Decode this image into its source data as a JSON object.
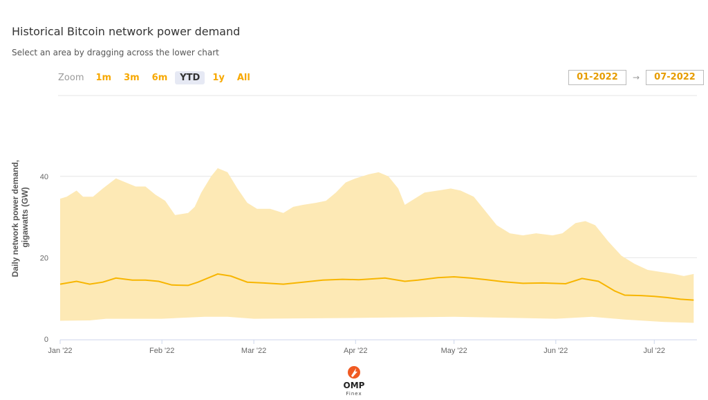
{
  "title": "Historical Bitcoin network power demand",
  "subtitle": "Select an area by dragging across the lower chart",
  "zoom": {
    "label": "Zoom",
    "buttons": [
      "1m",
      "3m",
      "6m",
      "YTD",
      "1y",
      "All"
    ],
    "active": "YTD"
  },
  "range": {
    "from": "01-2022",
    "to": "07-2022",
    "arrow": "→"
  },
  "logo": {
    "text": "OMP",
    "sub": "Finex"
  },
  "colors": {
    "accent": "#f7b500",
    "band": "#fde9b5",
    "grid": "#e6e6e6"
  },
  "chart_data": {
    "type": "area",
    "ylabel_lines": [
      "Daily network power demand,",
      "gigawatts (GW)"
    ],
    "yticks": [
      0,
      20,
      40
    ],
    "ylim": [
      0,
      50
    ],
    "xlim": [
      "2022-01-01",
      "2022-07-14"
    ],
    "xticks": [
      {
        "label": "Jan '22",
        "date": "2022-01-01"
      },
      {
        "label": "Feb '22",
        "date": "2022-02-01"
      },
      {
        "label": "Mar '22",
        "date": "2022-03-01"
      },
      {
        "label": "Apr '22",
        "date": "2022-04-01"
      },
      {
        "label": "May '22",
        "date": "2022-05-01"
      },
      {
        "label": "Jun '22",
        "date": "2022-06-01"
      },
      {
        "label": "Jul '22",
        "date": "2022-07-01"
      }
    ],
    "grid": true,
    "series": [
      {
        "role": "upper bound",
        "points": [
          [
            "2022-01-01",
            34.5
          ],
          [
            "2022-01-03",
            35
          ],
          [
            "2022-01-06",
            36.5
          ],
          [
            "2022-01-08",
            35
          ],
          [
            "2022-01-11",
            35
          ],
          [
            "2022-01-14",
            37
          ],
          [
            "2022-01-18",
            39.5
          ],
          [
            "2022-01-21",
            38.5
          ],
          [
            "2022-01-24",
            37.5
          ],
          [
            "2022-01-27",
            37.5
          ],
          [
            "2022-01-30",
            35.5
          ],
          [
            "2022-02-02",
            34
          ],
          [
            "2022-02-05",
            30.5
          ],
          [
            "2022-02-09",
            31
          ],
          [
            "2022-02-11",
            32.5
          ],
          [
            "2022-02-13",
            36
          ],
          [
            "2022-02-16",
            40
          ],
          [
            "2022-02-18",
            42
          ],
          [
            "2022-02-21",
            41
          ],
          [
            "2022-02-24",
            37
          ],
          [
            "2022-02-27",
            33.5
          ],
          [
            "2022-03-02",
            32
          ],
          [
            "2022-03-06",
            32
          ],
          [
            "2022-03-10",
            31
          ],
          [
            "2022-03-13",
            32.5
          ],
          [
            "2022-03-16",
            33
          ],
          [
            "2022-03-20",
            33.5
          ],
          [
            "2022-03-23",
            34
          ],
          [
            "2022-03-26",
            36
          ],
          [
            "2022-03-29",
            38.5
          ],
          [
            "2022-04-01",
            39.5
          ],
          [
            "2022-04-05",
            40.5
          ],
          [
            "2022-04-08",
            41
          ],
          [
            "2022-04-11",
            40
          ],
          [
            "2022-04-14",
            37
          ],
          [
            "2022-04-16",
            33
          ],
          [
            "2022-04-19",
            34.5
          ],
          [
            "2022-04-22",
            36
          ],
          [
            "2022-04-26",
            36.5
          ],
          [
            "2022-04-30",
            37
          ],
          [
            "2022-05-03",
            36.5
          ],
          [
            "2022-05-07",
            35
          ],
          [
            "2022-05-10",
            32
          ],
          [
            "2022-05-14",
            28
          ],
          [
            "2022-05-18",
            26
          ],
          [
            "2022-05-22",
            25.5
          ],
          [
            "2022-05-26",
            26
          ],
          [
            "2022-05-31",
            25.5
          ],
          [
            "2022-06-03",
            26
          ],
          [
            "2022-06-07",
            28.5
          ],
          [
            "2022-06-10",
            29
          ],
          [
            "2022-06-13",
            28
          ],
          [
            "2022-06-17",
            24
          ],
          [
            "2022-06-21",
            20.5
          ],
          [
            "2022-06-25",
            18.5
          ],
          [
            "2022-06-29",
            17
          ],
          [
            "2022-07-03",
            16.5
          ],
          [
            "2022-07-07",
            16
          ],
          [
            "2022-07-10",
            15.5
          ],
          [
            "2022-07-13",
            16
          ]
        ]
      },
      {
        "role": "estimate",
        "points": [
          [
            "2022-01-01",
            13.5
          ],
          [
            "2022-01-06",
            14.2
          ],
          [
            "2022-01-10",
            13.5
          ],
          [
            "2022-01-14",
            14
          ],
          [
            "2022-01-18",
            15
          ],
          [
            "2022-01-23",
            14.5
          ],
          [
            "2022-01-27",
            14.5
          ],
          [
            "2022-01-31",
            14.2
          ],
          [
            "2022-02-04",
            13.3
          ],
          [
            "2022-02-09",
            13.2
          ],
          [
            "2022-02-12",
            14
          ],
          [
            "2022-02-18",
            16
          ],
          [
            "2022-02-22",
            15.5
          ],
          [
            "2022-02-27",
            14
          ],
          [
            "2022-03-04",
            13.8
          ],
          [
            "2022-03-10",
            13.5
          ],
          [
            "2022-03-16",
            14
          ],
          [
            "2022-03-22",
            14.5
          ],
          [
            "2022-03-28",
            14.7
          ],
          [
            "2022-04-02",
            14.6
          ],
          [
            "2022-04-10",
            15
          ],
          [
            "2022-04-16",
            14.2
          ],
          [
            "2022-04-20",
            14.5
          ],
          [
            "2022-04-26",
            15.1
          ],
          [
            "2022-05-01",
            15.3
          ],
          [
            "2022-05-06",
            15
          ],
          [
            "2022-05-11",
            14.6
          ],
          [
            "2022-05-16",
            14.1
          ],
          [
            "2022-05-22",
            13.7
          ],
          [
            "2022-05-28",
            13.8
          ],
          [
            "2022-06-04",
            13.6
          ],
          [
            "2022-06-09",
            14.9
          ],
          [
            "2022-06-14",
            14.2
          ],
          [
            "2022-06-19",
            11.8
          ],
          [
            "2022-06-22",
            10.8
          ],
          [
            "2022-06-27",
            10.7
          ],
          [
            "2022-07-01",
            10.5
          ],
          [
            "2022-07-05",
            10.2
          ],
          [
            "2022-07-09",
            9.8
          ],
          [
            "2022-07-13",
            9.6
          ]
        ]
      },
      {
        "role": "lower bound",
        "points": [
          [
            "2022-01-01",
            4.5
          ],
          [
            "2022-01-10",
            4.6
          ],
          [
            "2022-01-15",
            5
          ],
          [
            "2022-02-01",
            5
          ],
          [
            "2022-02-14",
            5.5
          ],
          [
            "2022-02-21",
            5.5
          ],
          [
            "2022-03-01",
            5
          ],
          [
            "2022-04-01",
            5.2
          ],
          [
            "2022-05-01",
            5.5
          ],
          [
            "2022-06-01",
            5
          ],
          [
            "2022-06-12",
            5.5
          ],
          [
            "2022-06-22",
            4.8
          ],
          [
            "2022-07-04",
            4.2
          ],
          [
            "2022-07-13",
            4
          ]
        ]
      }
    ]
  }
}
